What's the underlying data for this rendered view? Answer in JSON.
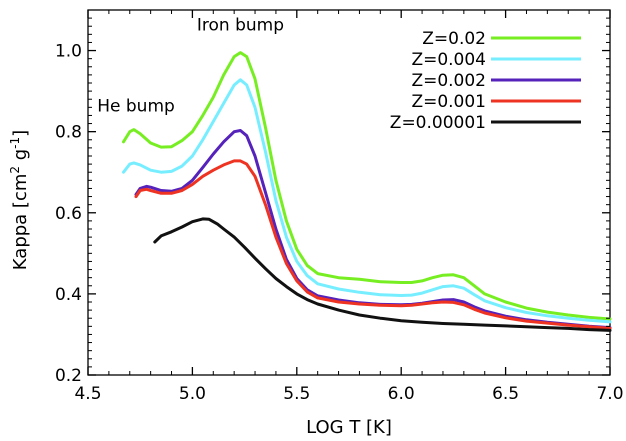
{
  "chart_data": {
    "type": "line",
    "xlabel": "LOG T [K]",
    "ylabel": {
      "text": "Kappa [cm",
      "sup1": "2",
      "mid": " g",
      "sup2": "-1",
      "end": "]"
    },
    "xlim": [
      4.5,
      7.0
    ],
    "ylim": [
      0.2,
      1.1
    ],
    "xticks": [
      4.5,
      5.0,
      5.5,
      6.0,
      6.5,
      7.0
    ],
    "xtick_labels": [
      "4.5",
      "5.0",
      "5.5",
      "6.0",
      "6.5",
      "7.0"
    ],
    "yticks": [
      0.2,
      0.4,
      0.6,
      0.8,
      1.0
    ],
    "ytick_labels": [
      "0.2",
      "0.4",
      "0.6",
      "0.8",
      "1.0"
    ],
    "grid": false,
    "legend_position": "top-right",
    "annotations": [
      {
        "text": "Iron bump",
        "x": 5.23,
        "y": 1.05
      },
      {
        "text": "He bump",
        "x": 4.73,
        "y": 0.85
      }
    ],
    "series": [
      {
        "name": "Z=0.02",
        "color": "#77ee22",
        "x": [
          4.67,
          4.7,
          4.72,
          4.75,
          4.8,
          4.85,
          4.9,
          4.95,
          5.0,
          5.05,
          5.1,
          5.15,
          5.2,
          5.23,
          5.26,
          5.3,
          5.35,
          5.4,
          5.45,
          5.5,
          5.55,
          5.6,
          5.7,
          5.8,
          5.9,
          6.0,
          6.05,
          6.1,
          6.15,
          6.2,
          6.25,
          6.3,
          6.35,
          6.4,
          6.5,
          6.6,
          6.7,
          6.8,
          6.9,
          7.0
        ],
        "y": [
          0.775,
          0.8,
          0.805,
          0.795,
          0.772,
          0.762,
          0.763,
          0.778,
          0.8,
          0.84,
          0.885,
          0.94,
          0.985,
          0.995,
          0.985,
          0.93,
          0.81,
          0.68,
          0.58,
          0.51,
          0.47,
          0.45,
          0.44,
          0.436,
          0.43,
          0.428,
          0.428,
          0.432,
          0.44,
          0.446,
          0.447,
          0.44,
          0.42,
          0.4,
          0.38,
          0.365,
          0.355,
          0.348,
          0.342,
          0.338
        ]
      },
      {
        "name": "Z=0.004",
        "color": "#77eeff",
        "x": [
          4.67,
          4.7,
          4.72,
          4.75,
          4.8,
          4.85,
          4.9,
          4.95,
          5.0,
          5.05,
          5.1,
          5.15,
          5.2,
          5.23,
          5.26,
          5.3,
          5.35,
          5.4,
          5.45,
          5.5,
          5.55,
          5.6,
          5.7,
          5.8,
          5.9,
          6.0,
          6.05,
          6.1,
          6.15,
          6.2,
          6.25,
          6.3,
          6.35,
          6.4,
          6.5,
          6.6,
          6.7,
          6.8,
          6.9,
          7.0
        ],
        "y": [
          0.7,
          0.72,
          0.723,
          0.718,
          0.705,
          0.7,
          0.702,
          0.715,
          0.74,
          0.78,
          0.825,
          0.87,
          0.915,
          0.928,
          0.915,
          0.86,
          0.75,
          0.63,
          0.54,
          0.48,
          0.445,
          0.425,
          0.412,
          0.404,
          0.398,
          0.396,
          0.397,
          0.402,
          0.41,
          0.418,
          0.42,
          0.414,
          0.398,
          0.383,
          0.366,
          0.354,
          0.346,
          0.34,
          0.335,
          0.331
        ]
      },
      {
        "name": "Z=0.002",
        "color": "#5522bb",
        "x": [
          4.73,
          4.75,
          4.78,
          4.8,
          4.85,
          4.9,
          4.95,
          5.0,
          5.05,
          5.1,
          5.15,
          5.2,
          5.23,
          5.26,
          5.3,
          5.35,
          5.4,
          5.45,
          5.5,
          5.55,
          5.6,
          5.7,
          5.8,
          5.9,
          6.0,
          6.05,
          6.1,
          6.15,
          6.2,
          6.25,
          6.3,
          6.35,
          6.4,
          6.5,
          6.6,
          6.7,
          6.8,
          6.9,
          7.0
        ],
        "y": [
          0.645,
          0.66,
          0.665,
          0.663,
          0.655,
          0.653,
          0.66,
          0.68,
          0.712,
          0.745,
          0.775,
          0.8,
          0.803,
          0.79,
          0.74,
          0.65,
          0.56,
          0.485,
          0.438,
          0.41,
          0.395,
          0.385,
          0.378,
          0.374,
          0.373,
          0.374,
          0.377,
          0.381,
          0.385,
          0.386,
          0.38,
          0.368,
          0.358,
          0.345,
          0.336,
          0.33,
          0.325,
          0.32,
          0.317
        ]
      },
      {
        "name": "Z=0.001",
        "color": "#ee3322",
        "x": [
          4.73,
          4.75,
          4.78,
          4.8,
          4.85,
          4.9,
          4.95,
          5.0,
          5.05,
          5.1,
          5.15,
          5.2,
          5.23,
          5.26,
          5.3,
          5.35,
          5.4,
          5.45,
          5.5,
          5.55,
          5.6,
          5.7,
          5.8,
          5.9,
          6.0,
          6.05,
          6.1,
          6.15,
          6.2,
          6.25,
          6.3,
          6.35,
          6.4,
          6.5,
          6.6,
          6.7,
          6.8,
          6.9,
          7.0
        ],
        "y": [
          0.64,
          0.655,
          0.658,
          0.655,
          0.648,
          0.648,
          0.655,
          0.67,
          0.69,
          0.705,
          0.718,
          0.728,
          0.728,
          0.72,
          0.69,
          0.62,
          0.54,
          0.475,
          0.432,
          0.405,
          0.39,
          0.38,
          0.375,
          0.372,
          0.371,
          0.372,
          0.375,
          0.378,
          0.38,
          0.379,
          0.373,
          0.362,
          0.353,
          0.341,
          0.333,
          0.328,
          0.323,
          0.319,
          0.315
        ]
      },
      {
        "name": "Z=0.00001",
        "color": "#111111",
        "x": [
          4.82,
          4.85,
          4.9,
          4.95,
          5.0,
          5.05,
          5.08,
          5.12,
          5.15,
          5.2,
          5.25,
          5.3,
          5.35,
          5.4,
          5.45,
          5.5,
          5.55,
          5.6,
          5.7,
          5.8,
          5.9,
          6.0,
          6.1,
          6.2,
          6.3,
          6.4,
          6.5,
          6.6,
          6.7,
          6.8,
          6.9,
          7.0
        ],
        "y": [
          0.528,
          0.543,
          0.553,
          0.565,
          0.578,
          0.585,
          0.584,
          0.572,
          0.56,
          0.54,
          0.515,
          0.488,
          0.462,
          0.438,
          0.418,
          0.4,
          0.386,
          0.375,
          0.36,
          0.348,
          0.34,
          0.334,
          0.33,
          0.327,
          0.325,
          0.323,
          0.321,
          0.319,
          0.317,
          0.315,
          0.312,
          0.31
        ]
      }
    ]
  }
}
